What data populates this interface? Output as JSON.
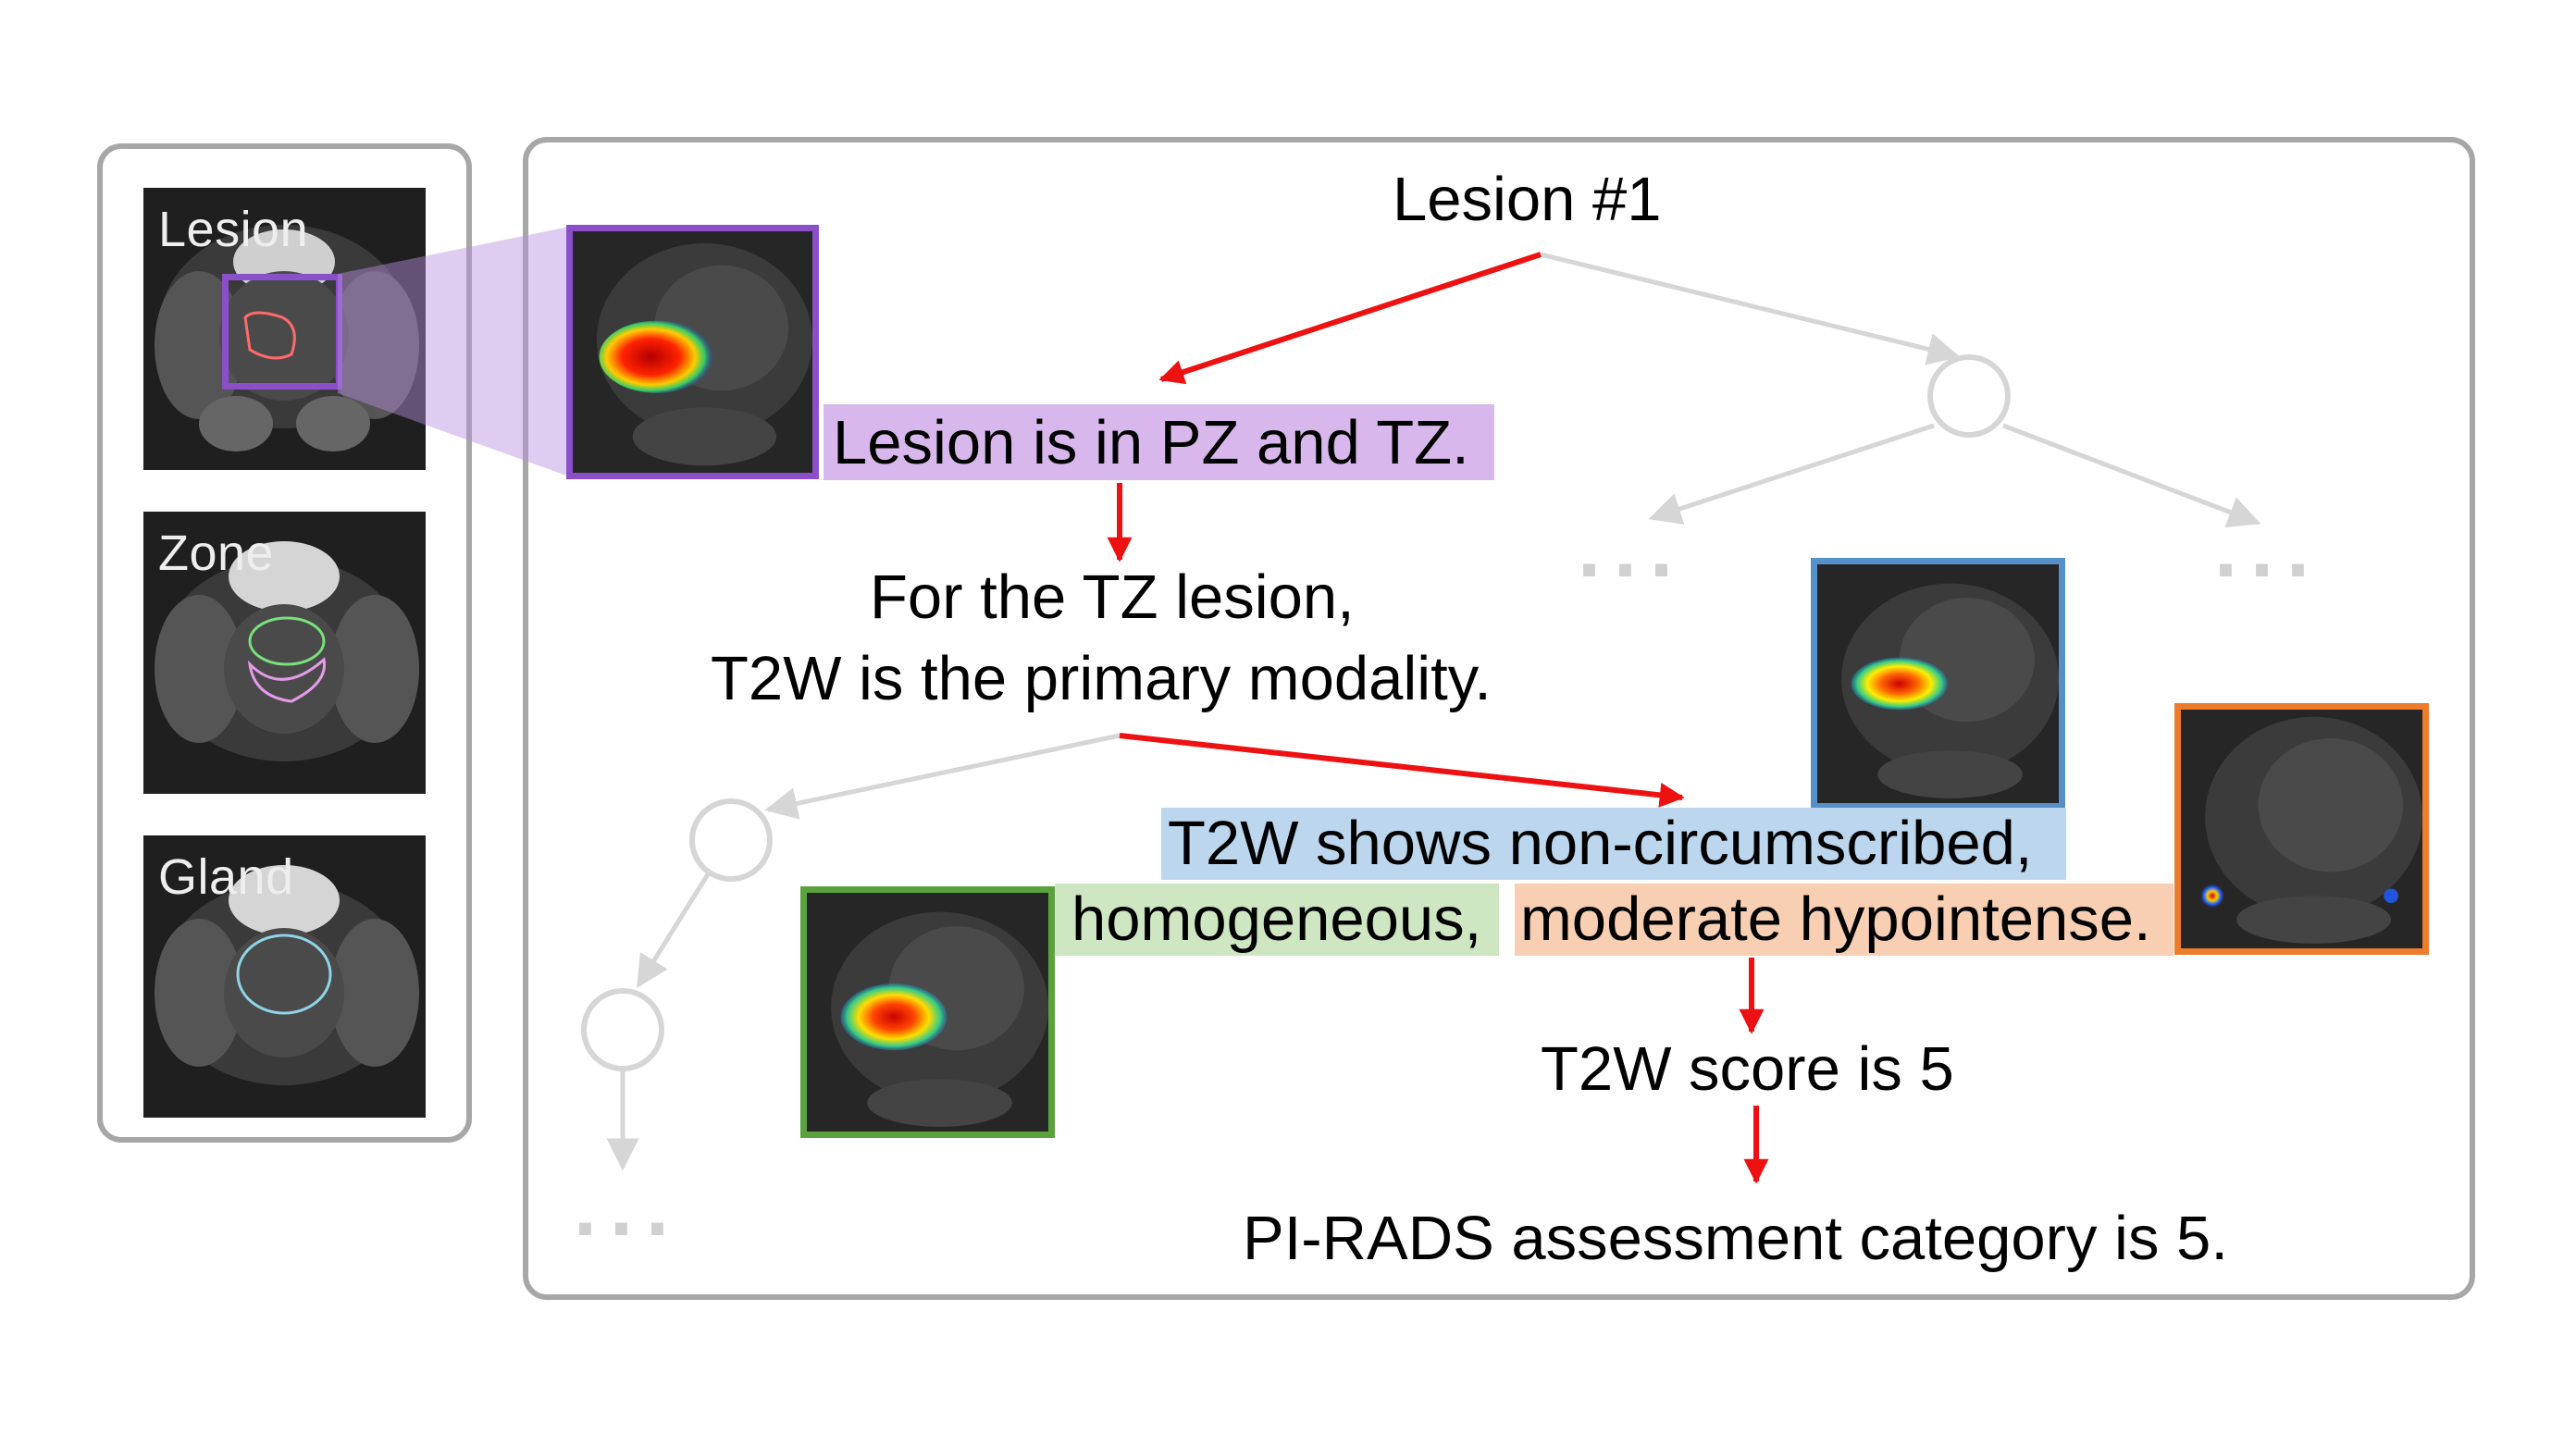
{
  "left_panel": {
    "thumbnails": [
      {
        "label": "Lesion",
        "outline_color": "#ff6b6b"
      },
      {
        "label": "Zone",
        "outline_color": "#7be07b",
        "second_outline_color": "#e59be8"
      },
      {
        "label": "Gland",
        "outline_color": "#8fd4e8"
      }
    ]
  },
  "flow": {
    "root": "Lesion #1",
    "location": "Lesion is in PZ and TZ.",
    "modality_line1": "For the TZ lesion,",
    "modality_line2": "T2W is the primary modality.",
    "finding_1": "T2W shows non-circumscribed,",
    "finding_2": "homogeneous,",
    "finding_3": "moderate hypointense.",
    "t2w_score": "T2W score is 5",
    "pirads": "PI-RADS assessment category is 5.",
    "ellipsis": "..."
  },
  "colors": {
    "lesion_purple": "#8a4fc9",
    "lesion_highlight": "#d8b8ec",
    "shape_blue": "#5590c8",
    "shape_highlight": "#bcd6ee",
    "margin_green": "#5aa33c",
    "margin_highlight": "#cfe6c2",
    "signal_orange": "#ec7d2c",
    "signal_highlight": "#f8cfb3",
    "arrow_red": "#ee1111",
    "tree_gray": "#d6d6d6",
    "frame_gray": "#a7a7a7"
  }
}
